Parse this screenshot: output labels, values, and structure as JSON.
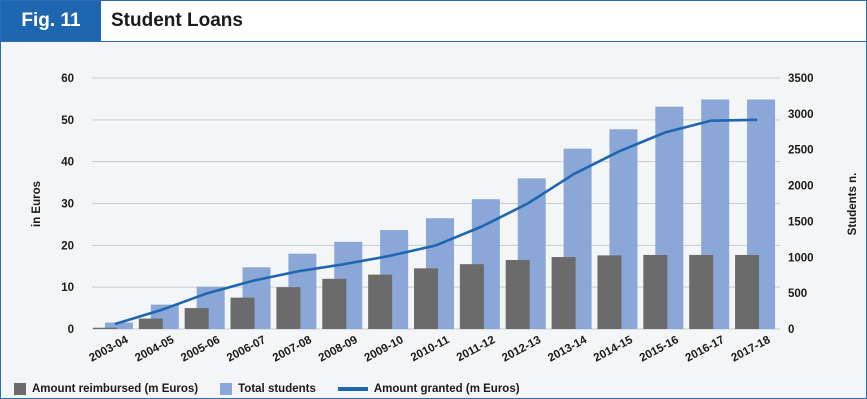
{
  "figure": {
    "number_label": "Fig. 11",
    "title": "Student Loans"
  },
  "chart_data": {
    "type": "bar",
    "categories": [
      "2003-04",
      "2004-05",
      "2005-06",
      "2006-07",
      "2007-08",
      "2008-09",
      "2009-10",
      "2010-11",
      "2011-12",
      "2012-13",
      "2013-14",
      "2014-15",
      "2015-16",
      "2016-17",
      "2017-18"
    ],
    "ylabel_left": "in Euros",
    "ylabel_right": "Students n.",
    "ylim_left": [
      0,
      60
    ],
    "ylim_right": [
      0,
      3500
    ],
    "yticks_left": [
      0,
      10,
      20,
      30,
      40,
      50,
      60
    ],
    "yticks_right": [
      0,
      500,
      1000,
      1500,
      2000,
      2500,
      3000,
      3500
    ],
    "grid": true,
    "legend_position": "bottom",
    "series": [
      {
        "name": "Amount reimbursed (m Euros)",
        "type": "bar",
        "axis": "left",
        "color": "#6b6b6b",
        "values": [
          0.3,
          2.5,
          5,
          7.5,
          10,
          12,
          13,
          14.5,
          15.5,
          16.5,
          17.2,
          17.6,
          17.7,
          17.7,
          17.7
        ]
      },
      {
        "name": "Total students",
        "type": "bar",
        "axis": "right",
        "color": "#8aa7d8",
        "values": [
          90,
          340,
          590,
          860,
          1050,
          1215,
          1380,
          1545,
          1810,
          2100,
          2515,
          2785,
          3100,
          3200,
          3200
        ]
      },
      {
        "name": "Amount granted (m Euros)",
        "type": "line",
        "axis": "left",
        "color": "#1f66b0",
        "values": [
          1.2,
          4.5,
          8.5,
          11.5,
          13.8,
          15.5,
          17.5,
          20,
          24.5,
          30,
          37,
          42.5,
          47,
          49.8,
          50
        ]
      }
    ]
  }
}
